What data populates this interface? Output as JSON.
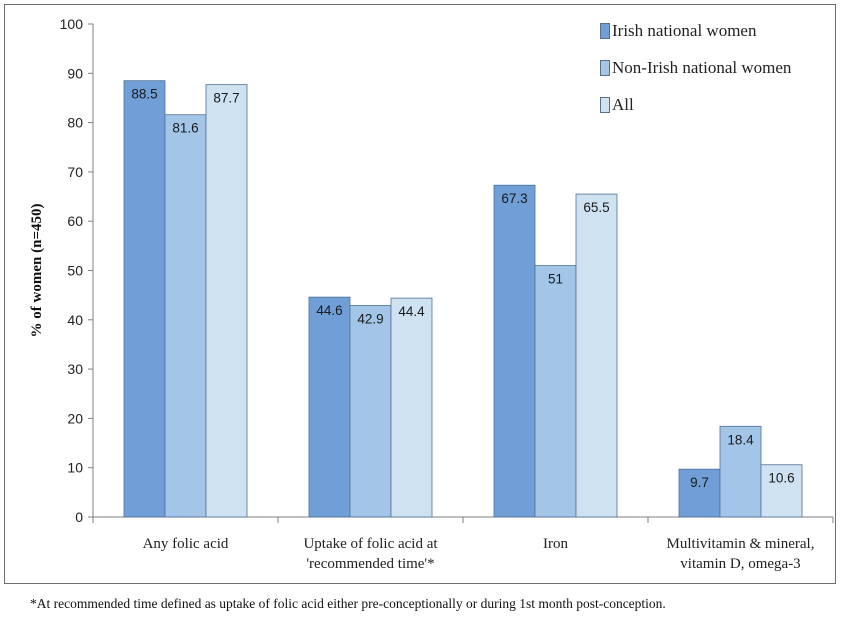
{
  "chart_data": {
    "type": "bar",
    "categories": [
      [
        "Any folic acid"
      ],
      [
        "Uptake of folic acid at",
        "'recommended time'*"
      ],
      [
        "Iron"
      ],
      [
        "Multivitamin & mineral,",
        "vitamin D, omega-3"
      ]
    ],
    "series": [
      {
        "name": "Irish national women",
        "color": "#6f9fd6",
        "values": [
          88.5,
          44.6,
          67.3,
          9.7
        ],
        "labels": [
          "88.5",
          "44.6",
          "67.3",
          "9.7"
        ]
      },
      {
        "name": "Non-Irish national women",
        "color": "#a3c6e8",
        "values": [
          81.6,
          42.9,
          51,
          18.4
        ],
        "labels": [
          "81.6",
          "42.9",
          "51",
          "18.4"
        ]
      },
      {
        "name": "All",
        "color": "#cfe2f1",
        "values": [
          87.7,
          44.4,
          65.5,
          10.6
        ],
        "labels": [
          "87.7",
          "44.4",
          "65.5",
          "10.6"
        ]
      }
    ],
    "ylabel": "% of women (n=450)",
    "ylim": [
      0,
      100
    ],
    "yticks": [
      "0",
      "10",
      "20",
      "30",
      "40",
      "50",
      "60",
      "70",
      "80",
      "90",
      "100"
    ],
    "grid": false,
    "legend": "top-right"
  },
  "footnote": "*At recommended time defined as uptake of folic acid either pre-conceptionally or during 1st month post-conception."
}
